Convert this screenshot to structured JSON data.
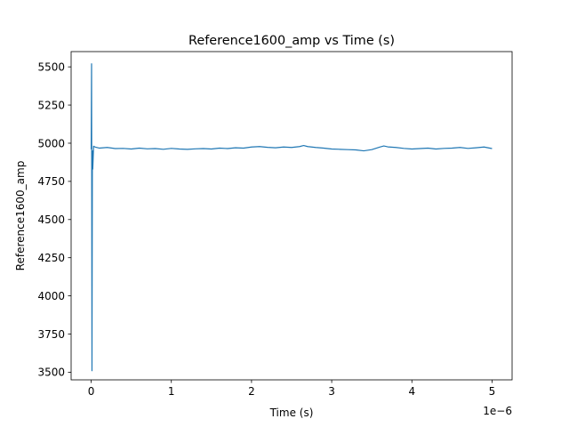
{
  "chart_data": {
    "type": "line",
    "title": "Reference1600_amp vs Time (s)",
    "xlabel": "Time (s)",
    "ylabel": "Reference1600_amp",
    "x_offset_label": "1e−6",
    "xlim": [
      -0.25,
      5.25
    ],
    "ylim": [
      3450,
      5600
    ],
    "x_ticks": [
      0,
      1,
      2,
      3,
      4,
      5
    ],
    "x_tick_labels": [
      "0",
      "1",
      "2",
      "3",
      "4",
      "5"
    ],
    "y_ticks": [
      3500,
      3750,
      4000,
      4250,
      4500,
      4750,
      5000,
      5250,
      5500
    ],
    "y_tick_labels": [
      "3500",
      "3750",
      "4000",
      "4250",
      "4500",
      "4750",
      "5000",
      "5250",
      "5500"
    ],
    "grid": false,
    "line_color": "#1f77b4",
    "series": [
      {
        "x": [
          0,
          0.005,
          0.01,
          0.015,
          0.02,
          0.03,
          0.05,
          0.1,
          0.2,
          0.3,
          0.4,
          0.5,
          0.6,
          0.7,
          0.8,
          0.9,
          1.0,
          1.1,
          1.2,
          1.3,
          1.4,
          1.5,
          1.6,
          1.7,
          1.8,
          1.9,
          2.0,
          2.1,
          2.2,
          2.3,
          2.4,
          2.5,
          2.6,
          2.65,
          2.7,
          2.8,
          2.9,
          3.0,
          3.1,
          3.2,
          3.3,
          3.4,
          3.5,
          3.6,
          3.65,
          3.7,
          3.8,
          3.9,
          4.0,
          4.1,
          4.2,
          4.3,
          4.4,
          4.5,
          4.6,
          4.7,
          4.8,
          4.9,
          5.0
        ],
        "y": [
          4960,
          5520,
          3510,
          4950,
          4830,
          4980,
          4975,
          4968,
          4972,
          4965,
          4966,
          4962,
          4968,
          4963,
          4965,
          4960,
          4966,
          4962,
          4960,
          4963,
          4965,
          4962,
          4968,
          4965,
          4970,
          4968,
          4975,
          4978,
          4973,
          4970,
          4975,
          4972,
          4978,
          4985,
          4978,
          4972,
          4968,
          4962,
          4960,
          4958,
          4956,
          4950,
          4958,
          4975,
          4982,
          4976,
          4972,
          4966,
          4962,
          4965,
          4968,
          4962,
          4966,
          4968,
          4972,
          4966,
          4970,
          4975,
          4965
        ]
      }
    ]
  }
}
